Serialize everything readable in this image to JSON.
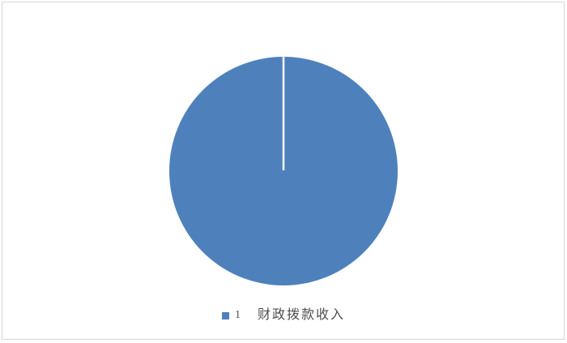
{
  "chart_data": {
    "type": "pie",
    "categories": [
      "财政拨款收入"
    ],
    "values": [
      100
    ],
    "colors": [
      "#4E81BC"
    ],
    "slice_divider_color": "#FFFFFF",
    "legend_position": "bottom",
    "legend": {
      "marker_color": "#4E81BC",
      "series_label": "1",
      "label": "财政拨款收入"
    }
  },
  "frame": {
    "background_color": "#FFFFFF",
    "border_color": "#D6D6D6"
  }
}
